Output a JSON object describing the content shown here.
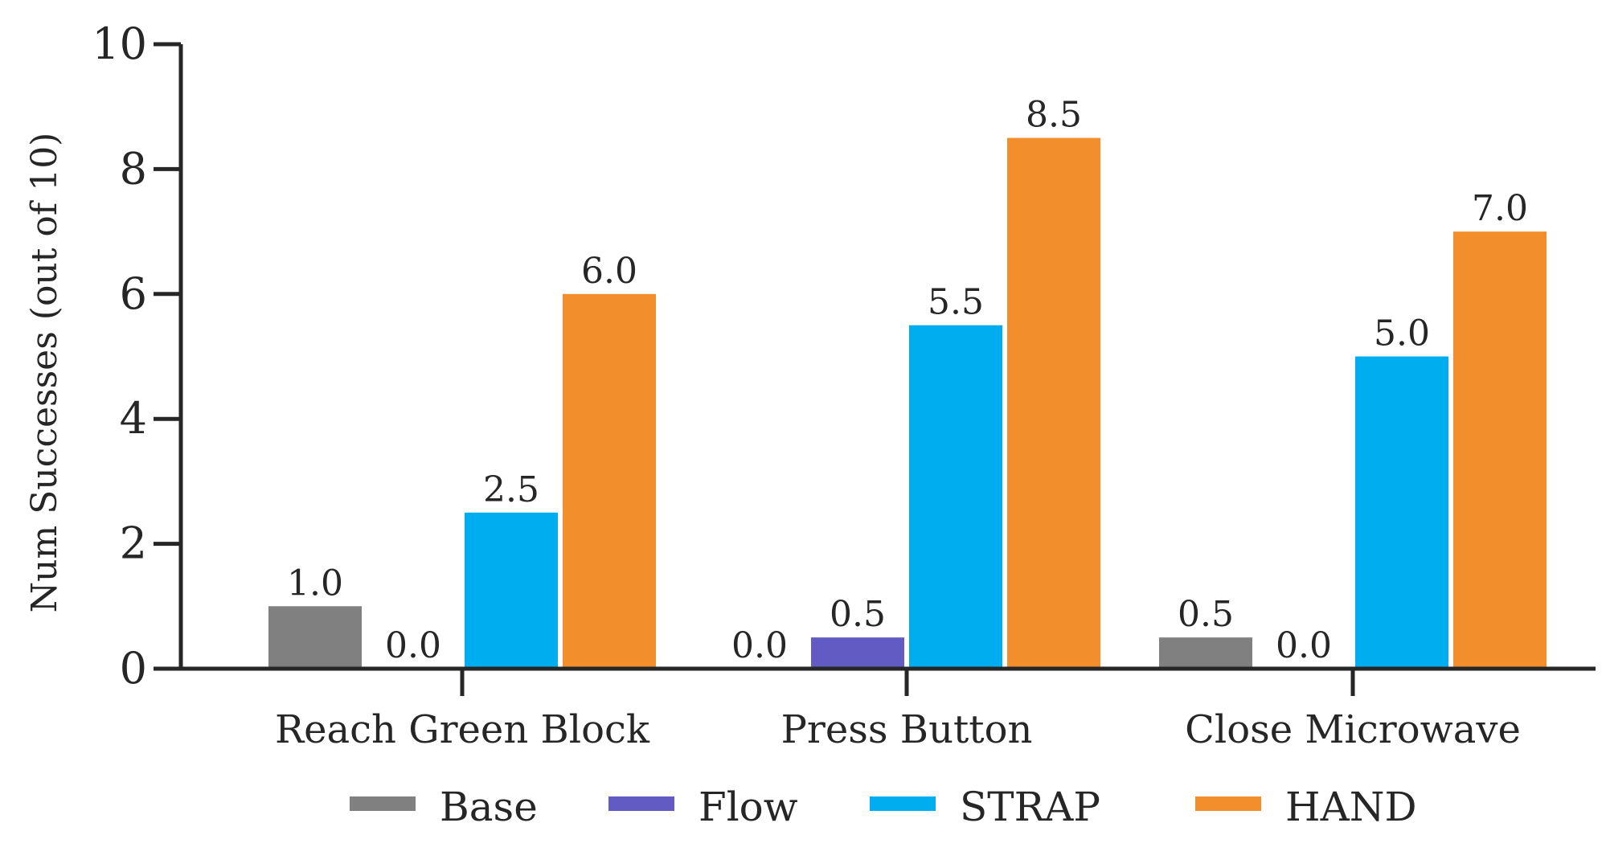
{
  "chart_data": {
    "type": "bar",
    "ylabel": "Num Successes (out of 10)",
    "xlabel": "",
    "ylim": [
      0,
      10
    ],
    "yticks": [
      0,
      2,
      4,
      6,
      8,
      10
    ],
    "categories": [
      "Reach Green Block",
      "Press Button",
      "Close Microwave"
    ],
    "series": [
      {
        "name": "Base",
        "color": "#808080",
        "values": [
          1.0,
          0.0,
          0.5
        ]
      },
      {
        "name": "Flow",
        "color": "#625BC4",
        "values": [
          0.0,
          0.5,
          0.0
        ]
      },
      {
        "name": "STRAP",
        "color": "#00AEEF",
        "values": [
          2.5,
          5.5,
          5.0
        ]
      },
      {
        "name": "HAND",
        "color": "#F28E2B",
        "values": [
          6.0,
          8.5,
          7.0
        ]
      }
    ],
    "value_format": "0.0",
    "grid": false,
    "legend_position": "bottom-center"
  }
}
